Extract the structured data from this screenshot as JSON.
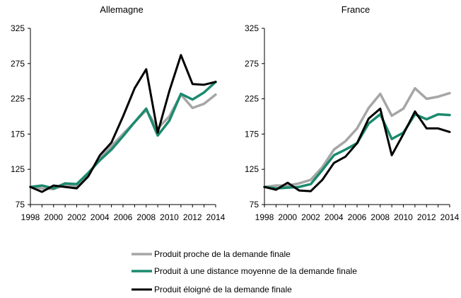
{
  "colors": {
    "series_1": "#a6a6a6",
    "series_2": "#1b8a6e",
    "series_3": "#000000",
    "axis": "#000000"
  },
  "legend": {
    "placement": "bottom-center",
    "items": [
      "Produit proche de la demande finale",
      "Produit à une distance moyenne de la demande finale",
      "Produit éloigné de la demande finale"
    ]
  },
  "chart_data": [
    {
      "type": "line",
      "title": "Allemagne",
      "x": [
        1998,
        1999,
        2000,
        2001,
        2002,
        2003,
        2004,
        2005,
        2006,
        2007,
        2008,
        2009,
        2010,
        2011,
        2012,
        2013,
        2014
      ],
      "xticks": [
        "1998",
        "2000",
        "2002",
        "2004",
        "2006",
        "2008",
        "2010",
        "2012",
        "2014"
      ],
      "yticks": [
        "75",
        "125",
        "175",
        "225",
        "275",
        "325"
      ],
      "ylim": [
        75,
        325
      ],
      "xlim": [
        1998,
        2014
      ],
      "grid": false,
      "series": [
        {
          "name": "Produit proche de la demande finale",
          "values": [
            100,
            98,
            97,
            103,
            100,
            118,
            140,
            158,
            175,
            192,
            209,
            183,
            200,
            231,
            212,
            218,
            231
          ]
        },
        {
          "name": "Produit à une distance moyenne de la demande finale",
          "values": [
            100,
            102,
            98,
            105,
            104,
            120,
            138,
            153,
            172,
            192,
            211,
            173,
            194,
            232,
            224,
            234,
            249
          ]
        },
        {
          "name": "Produit éloigné de la demande finale",
          "values": [
            100,
            93,
            102,
            100,
            98,
            115,
            145,
            163,
            200,
            240,
            267,
            177,
            236,
            287,
            246,
            245,
            249
          ]
        }
      ]
    },
    {
      "type": "line",
      "title": "France",
      "x": [
        1998,
        1999,
        2000,
        2001,
        2002,
        2003,
        2004,
        2005,
        2006,
        2007,
        2008,
        2009,
        2010,
        2011,
        2012,
        2013,
        2014
      ],
      "xticks": [
        "1998",
        "2000",
        "2002",
        "2004",
        "2006",
        "2008",
        "2010",
        "2012",
        "2014"
      ],
      "yticks": [
        "75",
        "125",
        "175",
        "225",
        "275",
        "325"
      ],
      "ylim": [
        75,
        325
      ],
      "xlim": [
        1998,
        2014
      ],
      "grid": false,
      "series": [
        {
          "name": "Produit proche de la demande finale",
          "values": [
            100,
            102,
            102,
            105,
            110,
            128,
            153,
            165,
            183,
            212,
            232,
            201,
            211,
            240,
            225,
            228,
            233
          ]
        },
        {
          "name": "Produit à une distance moyenne de la demande finale",
          "values": [
            100,
            98,
            99,
            100,
            104,
            124,
            145,
            153,
            162,
            190,
            203,
            168,
            177,
            203,
            196,
            203,
            202
          ]
        },
        {
          "name": "Produit éloigné de la demande finale",
          "values": [
            100,
            96,
            106,
            95,
            94,
            110,
            134,
            143,
            162,
            197,
            211,
            145,
            175,
            207,
            183,
            183,
            178
          ]
        }
      ]
    }
  ]
}
